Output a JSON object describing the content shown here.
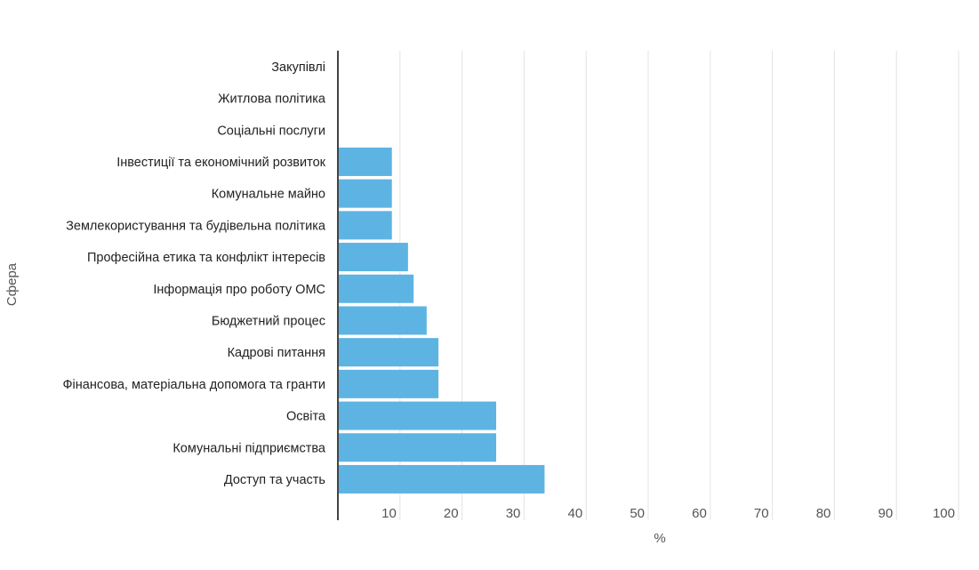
{
  "chart_data": {
    "type": "bar",
    "orientation": "horizontal",
    "title": "",
    "xlabel": "%",
    "ylabel": "Сфера",
    "xlim": [
      0,
      100
    ],
    "xticks": [
      10,
      20,
      30,
      40,
      50,
      60,
      70,
      80,
      90,
      100
    ],
    "grid": true,
    "legend": "none",
    "bar_color": "#5db4e3",
    "axis_color": "#444444",
    "grid_color": "#e3e3e3",
    "categories": [
      "Закупівлі",
      "Житлова політика",
      "Соціальні послуги",
      "Інвестиції та економічний розвиток",
      "Комунальне майно",
      "Землекористування та будівельна політика",
      "Професійна етика та конфлікт інтересів",
      "Інформація про роботу ОМС",
      "Бюджетний процес",
      "Кадрові питання",
      "Фінансова, матеріальна допомога та гранти",
      "Освіта",
      "Комунальні підприємства",
      "Доступ та участь"
    ],
    "values": [
      0,
      0,
      0,
      8.7,
      8.7,
      8.7,
      11.3,
      12.2,
      14.3,
      16.2,
      16.2,
      25.5,
      25.5,
      33.3
    ]
  }
}
